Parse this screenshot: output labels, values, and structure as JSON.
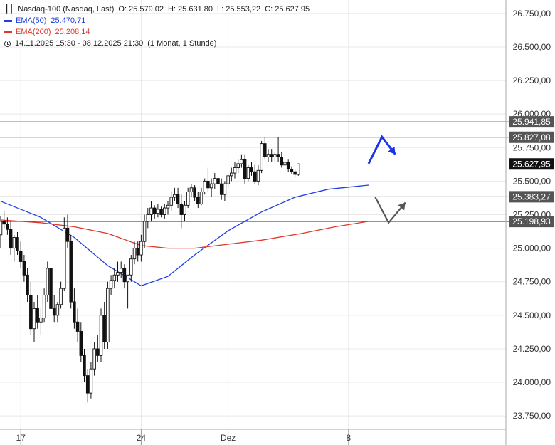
{
  "legend": {
    "instrument": "Nasdaq-100 (Nasdaq, Last)",
    "open_label": "O: 25.579,02",
    "high_label": "H: 25.631,80",
    "low_label": "L: 25.553,22",
    "close_label": "C: 25.627,95",
    "ema50_label": "EMA(50)",
    "ema50_value": "25.470,71",
    "ema200_label": "EMA(200)",
    "ema200_value": "25.208,14",
    "range": "14.11.2025 15:30 - 08.12.2025 21:30",
    "period": "(1 Monat, 1 Stunde)"
  },
  "colors": {
    "ema50": "#1f3fe0",
    "ema200": "#e0362c",
    "candle": "#111111",
    "grid": "#e8e8e8",
    "level_line": "#555555",
    "arrow_up": "#1a35e8",
    "arrow_gray": "#555555"
  },
  "chart_data": {
    "type": "candlestick",
    "title": "Nasdaq-100 (Nasdaq, Last)",
    "ylim": [
      23650,
      26850
    ],
    "y_ticks": [
      23750,
      24000,
      24250,
      24500,
      24750,
      25000,
      25250,
      25500,
      25750,
      26000,
      26250,
      26500,
      26750
    ],
    "y_tick_labels": [
      "23.750,00",
      "24.000,00",
      "24.250,00",
      "24.500,00",
      "24.750,00",
      "25.000,00",
      "25.250,00",
      "25.500,00",
      "25.750,00",
      "26.000,00",
      "26.250,00",
      "26.500,00",
      "26.750,00"
    ],
    "x_ticks": [
      {
        "index": 6,
        "label": "17"
      },
      {
        "index": 42,
        "label": "24"
      },
      {
        "index": 68,
        "label": "Dez"
      },
      {
        "index": 104,
        "label": "8"
      }
    ],
    "grid": true,
    "levels": [
      {
        "value": 25941.85,
        "label": "25.941,85"
      },
      {
        "value": 25827.08,
        "label": "25.827,08"
      },
      {
        "value": 25383.27,
        "label": "25.383,27"
      },
      {
        "value": 25198.93,
        "label": "25.198,93"
      }
    ],
    "last_price": {
      "value": 25627.95,
      "label": "25.627,95"
    },
    "series": [
      {
        "name": "EMA(50)",
        "values": [
          [
            0,
            25350
          ],
          [
            12,
            25230
          ],
          [
            22,
            25080
          ],
          [
            32,
            24870
          ],
          [
            42,
            24720
          ],
          [
            50,
            24790
          ],
          [
            58,
            24950
          ],
          [
            68,
            25130
          ],
          [
            78,
            25270
          ],
          [
            88,
            25380
          ],
          [
            98,
            25440
          ],
          [
            110,
            25470
          ]
        ]
      },
      {
        "name": "EMA(200)",
        "values": [
          [
            0,
            25210
          ],
          [
            12,
            25190
          ],
          [
            22,
            25160
          ],
          [
            32,
            25110
          ],
          [
            42,
            25020
          ],
          [
            50,
            25000
          ],
          [
            58,
            25000
          ],
          [
            68,
            25030
          ],
          [
            78,
            25060
          ],
          [
            90,
            25110
          ],
          [
            100,
            25160
          ],
          [
            110,
            25200
          ]
        ]
      }
    ],
    "scenario_arrows": [
      {
        "kind": "up-then-down",
        "points": [
          [
            110,
            25630
          ],
          [
            114,
            25830
          ],
          [
            118,
            25700
          ]
        ]
      },
      {
        "kind": "down-then-up",
        "points": [
          [
            112,
            25380
          ],
          [
            116,
            25190
          ],
          [
            121,
            25340
          ]
        ]
      }
    ],
    "candles": [
      [
        25100,
        25240,
        25000,
        25200
      ],
      [
        25200,
        25280,
        25150,
        25180
      ],
      [
        25180,
        25230,
        25100,
        25140
      ],
      [
        25140,
        25200,
        24950,
        25000
      ],
      [
        25000,
        25100,
        24900,
        25080
      ],
      [
        25080,
        25120,
        24950,
        24980
      ],
      [
        24980,
        25050,
        24850,
        24900
      ],
      [
        24900,
        24950,
        24750,
        24800
      ],
      [
        24800,
        24850,
        24600,
        24650
      ],
      [
        24650,
        24750,
        24350,
        24400
      ],
      [
        24400,
        24600,
        24300,
        24550
      ],
      [
        24550,
        24650,
        24400,
        24450
      ],
      [
        24450,
        24550,
        24350,
        24480
      ],
      [
        24480,
        24700,
        24450,
        24650
      ],
      [
        24650,
        24900,
        24600,
        24850
      ],
      [
        24850,
        24950,
        24500,
        24550
      ],
      [
        24550,
        24650,
        24450,
        24500
      ],
      [
        24500,
        24600,
        24450,
        24580
      ],
      [
        24580,
        24750,
        24550,
        24700
      ],
      [
        24700,
        25230,
        24680,
        25150
      ],
      [
        25150,
        25250,
        25000,
        25050
      ],
      [
        25050,
        25100,
        24550,
        24600
      ],
      [
        24600,
        24700,
        24400,
        24450
      ],
      [
        24450,
        24550,
        24300,
        24380
      ],
      [
        24380,
        24450,
        24150,
        24200
      ],
      [
        24200,
        24250,
        24000,
        24050
      ],
      [
        24050,
        24100,
        23850,
        23920
      ],
      [
        23920,
        24150,
        23880,
        24100
      ],
      [
        24100,
        24300,
        24050,
        24250
      ],
      [
        24250,
        24350,
        24150,
        24200
      ],
      [
        24200,
        24550,
        24150,
        24500
      ],
      [
        24500,
        24600,
        24250,
        24300
      ],
      [
        24300,
        24750,
        24250,
        24700
      ],
      [
        24700,
        24800,
        24650,
        24760
      ],
      [
        24760,
        24850,
        24700,
        24800
      ],
      [
        24800,
        24900,
        24750,
        24820
      ],
      [
        24820,
        24900,
        24780,
        24850
      ],
      [
        24850,
        24880,
        24700,
        24750
      ],
      [
        24750,
        24800,
        24550,
        24800
      ],
      [
        24800,
        24950,
        24750,
        24920
      ],
      [
        24920,
        25050,
        24880,
        25000
      ],
      [
        25000,
        25050,
        24900,
        24950
      ],
      [
        24950,
        25100,
        24900,
        25050
      ],
      [
        25050,
        25250,
        25000,
        25200
      ],
      [
        25200,
        25300,
        25150,
        25250
      ],
      [
        25250,
        25350,
        25200,
        25300
      ],
      [
        25300,
        25320,
        25220,
        25260
      ],
      [
        25260,
        25330,
        25230,
        25290
      ],
      [
        25290,
        25310,
        25230,
        25250
      ],
      [
        25250,
        25330,
        25220,
        25300
      ],
      [
        25300,
        25350,
        25250,
        25320
      ],
      [
        25320,
        25420,
        25280,
        25380
      ],
      [
        25380,
        25450,
        25350,
        25400
      ],
      [
        25400,
        25450,
        25300,
        25330
      ],
      [
        25330,
        25400,
        25150,
        25250
      ],
      [
        25250,
        25350,
        25200,
        25320
      ],
      [
        25320,
        25450,
        25300,
        25420
      ],
      [
        25420,
        25480,
        25380,
        25450
      ],
      [
        25450,
        25470,
        25350,
        25380
      ],
      [
        25380,
        25420,
        25300,
        25330
      ],
      [
        25330,
        25450,
        25320,
        25420
      ],
      [
        25420,
        25520,
        25400,
        25500
      ],
      [
        25500,
        25600,
        25420,
        25450
      ],
      [
        25450,
        25520,
        25380,
        25480
      ],
      [
        25480,
        25560,
        25440,
        25520
      ],
      [
        25520,
        25600,
        25460,
        25480
      ],
      [
        25480,
        25520,
        25360,
        25400
      ],
      [
        25400,
        25500,
        25350,
        25480
      ],
      [
        25480,
        25560,
        25450,
        25540
      ],
      [
        25540,
        25600,
        25500,
        25560
      ],
      [
        25560,
        25640,
        25520,
        25600
      ],
      [
        25600,
        25660,
        25560,
        25630
      ],
      [
        25630,
        25700,
        25600,
        25660
      ],
      [
        25660,
        25700,
        25480,
        25520
      ],
      [
        25520,
        25620,
        25500,
        25600
      ],
      [
        25600,
        25640,
        25540,
        25570
      ],
      [
        25570,
        25620,
        25480,
        25500
      ],
      [
        25500,
        25620,
        25470,
        25580
      ],
      [
        25580,
        25800,
        25560,
        25780
      ],
      [
        25780,
        25830,
        25660,
        25680
      ],
      [
        25680,
        25740,
        25640,
        25700
      ],
      [
        25700,
        25740,
        25640,
        25680
      ],
      [
        25680,
        25720,
        25640,
        25700
      ],
      [
        25700,
        25830,
        25640,
        25680
      ],
      [
        25680,
        25720,
        25600,
        25620
      ],
      [
        25620,
        25680,
        25580,
        25640
      ],
      [
        25640,
        25660,
        25570,
        25590
      ],
      [
        25590,
        25610,
        25550,
        25570
      ],
      [
        25570,
        25590,
        25530,
        25550
      ],
      [
        25550,
        25632,
        25540,
        25628
      ]
    ]
  }
}
